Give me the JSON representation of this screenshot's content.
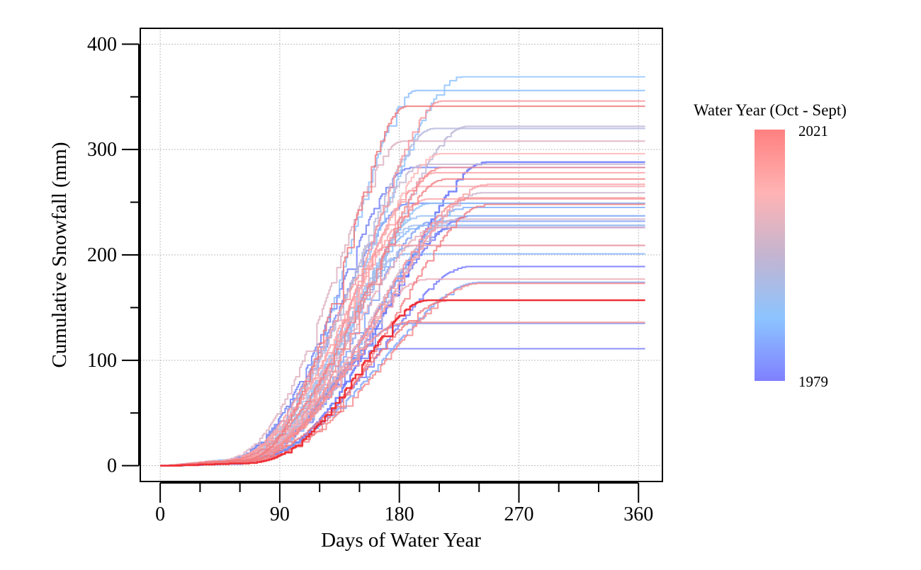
{
  "chart_data": {
    "type": "line",
    "title": "",
    "xlabel": "Days of Water Year",
    "ylabel": "Cumulative Snowfall (mm)",
    "xlim": [
      -15,
      378
    ],
    "ylim": [
      -15,
      415
    ],
    "x_ticks_major": [
      0,
      90,
      180,
      270,
      360
    ],
    "x_ticks_minor": [
      30,
      60,
      120,
      150,
      210,
      240,
      300,
      330
    ],
    "y_ticks_major": [
      0,
      100,
      200,
      300,
      400
    ],
    "y_ticks_minor": [
      50,
      150,
      250,
      350
    ],
    "grid": true,
    "legend": {
      "title": "Water Year (Oct - Sept)",
      "placement": "right",
      "min_label": "1979",
      "max_label": "2021",
      "colors": [
        "#ff8080",
        "#ffb3b3",
        "#c4b4d0",
        "#8cc4ff",
        "#8080ff"
      ]
    },
    "series_year_range": [
      1979,
      2021
    ],
    "series_count": 43,
    "series": [
      {
        "year": 1979,
        "final": 189,
        "color": "#6e72ff"
      },
      {
        "year": 1980,
        "final": 237,
        "color": "#6c73ff"
      },
      {
        "year": 1981,
        "final": 111,
        "color": "#6f76f8"
      },
      {
        "year": 1982,
        "final": 283,
        "color": "#6a7af6"
      },
      {
        "year": 1983,
        "final": 226,
        "color": "#6f80f5"
      },
      {
        "year": 1984,
        "final": 249,
        "color": "#6f88f4"
      },
      {
        "year": 1985,
        "final": 135,
        "color": "#7090f4"
      },
      {
        "year": 1986,
        "final": 232,
        "color": "#7a9cf6"
      },
      {
        "year": 1987,
        "final": 288,
        "color": "#5a6cff"
      },
      {
        "year": 1988,
        "final": 174,
        "color": "#7aa4fb"
      },
      {
        "year": 1989,
        "final": 245,
        "color": "#7cabfd"
      },
      {
        "year": 1990,
        "final": 201,
        "color": "#80b2ff"
      },
      {
        "year": 1991,
        "final": 228,
        "color": "#84b8ff"
      },
      {
        "year": 1992,
        "final": 356,
        "color": "#88bcff"
      },
      {
        "year": 1993,
        "final": 369,
        "color": "#8cc0fc"
      },
      {
        "year": 1994,
        "final": 249,
        "color": "#90c2f8"
      },
      {
        "year": 1995,
        "final": 237,
        "color": "#96bff2"
      },
      {
        "year": 1996,
        "final": 228,
        "color": "#9fbceb"
      },
      {
        "year": 1997,
        "final": 209,
        "color": "#a9b9e4"
      },
      {
        "year": 1998,
        "final": 320,
        "color": "#b2b6dc"
      },
      {
        "year": 1999,
        "final": 322,
        "color": "#bab4d6"
      },
      {
        "year": 2000,
        "final": 286,
        "color": "#c4b4d0"
      },
      {
        "year": 2001,
        "final": 259,
        "color": "#ccb2ca"
      },
      {
        "year": 2002,
        "final": 234,
        "color": "#d4b0c4"
      },
      {
        "year": 2003,
        "final": 308,
        "color": "#dcaebf"
      },
      {
        "year": 2004,
        "final": 226,
        "color": "#e4acba"
      },
      {
        "year": 2005,
        "final": 177,
        "color": "#ecaab5"
      },
      {
        "year": 2006,
        "final": 265,
        "color": "#f4a8b0"
      },
      {
        "year": 2007,
        "final": 296,
        "color": "#ffb3b3"
      },
      {
        "year": 2008,
        "final": 253,
        "color": "#fca4a8"
      },
      {
        "year": 2009,
        "final": 278,
        "color": "#fba0a4"
      },
      {
        "year": 2010,
        "final": 267,
        "color": "#fa9ca0"
      },
      {
        "year": 2011,
        "final": 209,
        "color": "#f8989c"
      },
      {
        "year": 2012,
        "final": 346,
        "color": "#f89498"
      },
      {
        "year": 2013,
        "final": 136,
        "color": "#f79094"
      },
      {
        "year": 2014,
        "final": 254,
        "color": "#f68c90"
      },
      {
        "year": 2015,
        "final": 283,
        "color": "#f5888c"
      },
      {
        "year": 2016,
        "final": 173,
        "color": "#f48488"
      },
      {
        "year": 2017,
        "final": 272,
        "color": "#f38084"
      },
      {
        "year": 2018,
        "final": 248,
        "color": "#f27c80"
      },
      {
        "year": 2019,
        "final": 157,
        "color": "#f0787c"
      },
      {
        "year": 2020,
        "final": 341,
        "color": "#ef7478"
      },
      {
        "year": 2021,
        "final": 157,
        "color": "#ee2a30"
      }
    ]
  }
}
